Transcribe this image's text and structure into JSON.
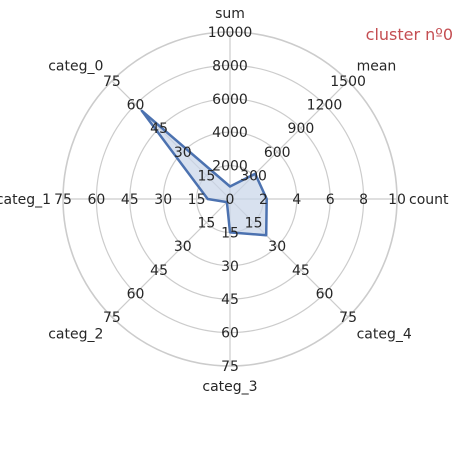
{
  "chart_data": {
    "type": "radar",
    "title": "cluster nº0",
    "title_color": "#c44e52",
    "series_color": "#4c72b0",
    "fill_color": "#c8d4e8",
    "grid_color": "#cccccc",
    "axes": [
      {
        "name": "count",
        "max": 10,
        "ticks": [
          "2",
          "4",
          "6",
          "8",
          "10"
        ],
        "value": 2.2
      },
      {
        "name": "mean",
        "max": 1500,
        "ticks": [
          "300",
          "600",
          "900",
          "1200",
          "1500"
        ],
        "value": 320
      },
      {
        "name": "sum",
        "max": 10000,
        "ticks": [
          "2000",
          "4000",
          "6000",
          "8000",
          "10000"
        ],
        "value": 750
      },
      {
        "name": "categ_0",
        "max": 75,
        "ticks": [
          "15",
          "30",
          "45",
          "60",
          "75"
        ],
        "value": 56
      },
      {
        "name": "categ_1",
        "max": 75,
        "ticks": [
          "15",
          "30",
          "45",
          "60",
          "75"
        ],
        "value": 10
      },
      {
        "name": "categ_2",
        "max": 75,
        "ticks": [
          "15",
          "30",
          "45",
          "60",
          "75"
        ],
        "value": 2
      },
      {
        "name": "categ_3",
        "max": 75,
        "ticks": [
          "15",
          "30",
          "45",
          "60",
          "75"
        ],
        "value": 15
      },
      {
        "name": "categ_4",
        "max": 75,
        "ticks": [
          "15",
          "30",
          "45",
          "60",
          "75"
        ],
        "value": 23
      }
    ]
  }
}
